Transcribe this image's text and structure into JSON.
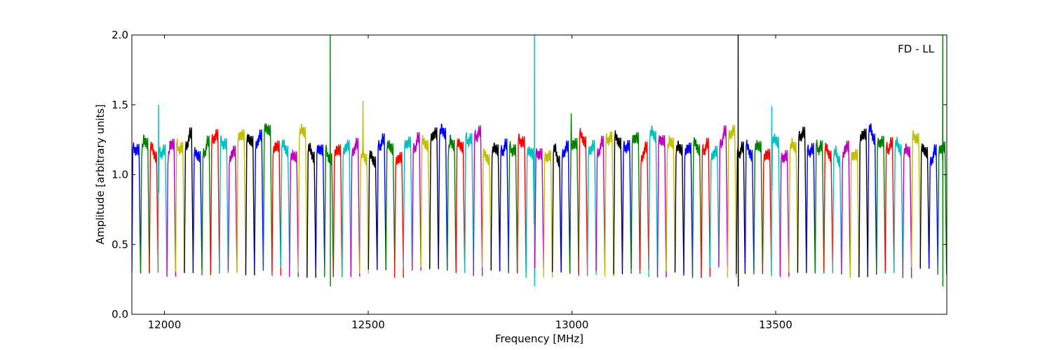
{
  "chart_data": {
    "type": "line",
    "title": "",
    "xlabel": "Frequency [MHz]",
    "ylabel": "Amplitude [arbitrary units]",
    "xlim": [
      11920,
      13920
    ],
    "ylim": [
      0.0,
      2.0
    ],
    "xticks": [
      12000,
      12500,
      13000,
      13500
    ],
    "yticks": [
      0.0,
      0.5,
      1.0,
      1.5,
      2.0
    ],
    "xtick_labels": [
      "12000",
      "12500",
      "13000",
      "13500"
    ],
    "ytick_labels": [
      "0.0",
      "0.5",
      "1.0",
      "1.5",
      "2.0"
    ],
    "grid": false,
    "annotation": "FD - LL",
    "color_cycle": [
      "#0000ff",
      "#007f00",
      "#ff0000",
      "#00bfbf",
      "#bf00bf",
      "#bfbf00",
      "#000000"
    ],
    "channel_spacing_mhz": 21.5,
    "channel_count": 93,
    "typical_peak_amplitude": 1.2,
    "typical_trough_amplitude": 0.3,
    "spikes": [
      {
        "x": 12407,
        "y": 2.0,
        "color": "#007f00"
      },
      {
        "x": 12908,
        "y": 2.0,
        "color": "#00bfbf"
      },
      {
        "x": 13408,
        "y": 2.0,
        "color": "#bfbf00"
      },
      {
        "x": 13910,
        "y": 2.0,
        "color": "#0000ff"
      }
    ],
    "notable_peaks": [
      {
        "x": 11985,
        "y": 1.5
      },
      {
        "x": 12487,
        "y": 1.53
      },
      {
        "x": 12998,
        "y": 1.44
      },
      {
        "x": 13490,
        "y": 1.49
      }
    ]
  }
}
